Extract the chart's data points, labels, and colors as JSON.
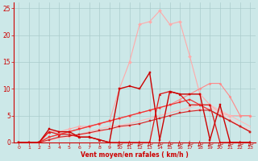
{
  "title": "",
  "xlabel": "Vent moyen/en rafales ( km/h )",
  "bg_color": "#cce8e8",
  "grid_color": "#aacccc",
  "xlim": [
    -0.5,
    23.5
  ],
  "ylim": [
    0,
    26
  ],
  "yticks": [
    0,
    5,
    10,
    15,
    20,
    25
  ],
  "xticks": [
    0,
    1,
    2,
    3,
    4,
    5,
    6,
    7,
    8,
    9,
    10,
    11,
    12,
    13,
    14,
    15,
    16,
    17,
    18,
    19,
    20,
    21,
    22,
    23
  ],
  "series": [
    {
      "x": [
        0,
        1,
        2,
        3,
        4,
        5,
        6,
        7,
        8,
        9,
        10,
        11,
        12,
        13,
        14,
        15,
        16,
        17,
        18,
        19,
        20,
        21,
        22,
        23
      ],
      "y": [
        0,
        0,
        0,
        2,
        2,
        2.5,
        3,
        3,
        3.5,
        4,
        10,
        15,
        22,
        22.5,
        24.5,
        22,
        22.5,
        16,
        9,
        7,
        5.5,
        5,
        5,
        5
      ],
      "color": "#ffaaaa",
      "lw": 0.8,
      "marker": "D",
      "ms": 2.0,
      "ls": "-",
      "zorder": 2
    },
    {
      "x": [
        0,
        1,
        2,
        3,
        4,
        5,
        6,
        7,
        8,
        9,
        10,
        11,
        12,
        13,
        14,
        15,
        16,
        17,
        18,
        19,
        20,
        21,
        22,
        23
      ],
      "y": [
        0,
        0,
        0,
        1,
        1.5,
        2,
        2.5,
        3,
        3.5,
        4,
        4.5,
        5,
        5.5,
        6,
        6.5,
        7,
        8,
        9,
        10,
        11,
        11,
        8.5,
        5,
        5
      ],
      "color": "#ff8888",
      "lw": 0.8,
      "marker": "D",
      "ms": 1.5,
      "ls": "-",
      "zorder": 2
    },
    {
      "x": [
        0,
        1,
        2,
        3,
        4,
        5,
        6,
        7,
        8,
        9,
        10,
        11,
        12,
        13,
        14,
        15,
        16,
        17,
        18,
        19,
        20,
        21,
        22,
        23
      ],
      "y": [
        0,
        0,
        0,
        0.5,
        1,
        1.2,
        1.5,
        2,
        2.5,
        3,
        3.2,
        3.5,
        4,
        4.5,
        5,
        5.5,
        6,
        6.5,
        7,
        7,
        6,
        5,
        4,
        3
      ],
      "color": "#ffbbbb",
      "lw": 0.8,
      "marker": null,
      "ms": 0,
      "ls": "-",
      "zorder": 2
    },
    {
      "x": [
        0,
        1,
        2,
        3,
        4,
        5,
        6,
        7,
        8,
        9,
        10,
        11,
        12,
        13,
        14,
        15,
        16,
        17,
        18,
        19,
        20,
        21,
        22,
        23
      ],
      "y": [
        0,
        0,
        0,
        0.3,
        0.8,
        1,
        1.3,
        1.7,
        2,
        2.5,
        2.8,
        3,
        3.5,
        4,
        4.5,
        5,
        5.5,
        6,
        6.2,
        6.5,
        5.5,
        4.5,
        3,
        2.5
      ],
      "color": "#ffcccc",
      "lw": 0.8,
      "marker": null,
      "ms": 0,
      "ls": "-",
      "zorder": 2
    },
    {
      "x": [
        0,
        1,
        2,
        3,
        4,
        5,
        6,
        7,
        8,
        9,
        10,
        11,
        12,
        13,
        14,
        15,
        16,
        17,
        18,
        19,
        20,
        21,
        22,
        23
      ],
      "y": [
        0,
        0,
        0,
        2.5,
        2,
        2,
        1,
        1,
        0.5,
        0,
        10,
        10.5,
        10,
        13,
        0.5,
        9.5,
        9,
        9,
        9,
        0.5,
        7,
        0,
        0,
        0
      ],
      "color": "#cc0000",
      "lw": 1.0,
      "marker": "s",
      "ms": 2.0,
      "ls": "-",
      "zorder": 4
    },
    {
      "x": [
        0,
        1,
        2,
        3,
        4,
        5,
        6,
        7,
        8,
        9,
        10,
        11,
        12,
        13,
        14,
        15,
        16,
        17,
        18,
        19,
        20,
        21,
        22,
        23
      ],
      "y": [
        0,
        0,
        0,
        2,
        1.5,
        1.5,
        1,
        1,
        0.5,
        0,
        0,
        0,
        0,
        0,
        9,
        9.5,
        9,
        7,
        7,
        7,
        0,
        0,
        0,
        0
      ],
      "color": "#dd1111",
      "lw": 0.9,
      "marker": "^",
      "ms": 2.0,
      "ls": "-",
      "zorder": 3
    },
    {
      "x": [
        0,
        1,
        2,
        3,
        4,
        5,
        6,
        7,
        8,
        9,
        10,
        11,
        12,
        13,
        14,
        15,
        16,
        17,
        18,
        19,
        20,
        21,
        22,
        23
      ],
      "y": [
        0,
        0,
        0,
        1,
        1.5,
        2,
        2.5,
        3,
        3.5,
        4,
        4.5,
        5,
        5.5,
        6,
        6.5,
        7,
        7.5,
        8,
        7,
        6,
        5,
        4,
        3,
        2
      ],
      "color": "#ee3333",
      "lw": 0.9,
      "marker": "s",
      "ms": 1.5,
      "ls": "-",
      "zorder": 3
    },
    {
      "x": [
        0,
        1,
        2,
        3,
        4,
        5,
        6,
        7,
        8,
        9,
        10,
        11,
        12,
        13,
        14,
        15,
        16,
        17,
        18,
        19,
        20,
        21,
        22,
        23
      ],
      "y": [
        0,
        0,
        0,
        0.5,
        1,
        1.2,
        1.5,
        1.8,
        2.2,
        2.5,
        3,
        3.2,
        3.5,
        4,
        4.5,
        5,
        5.5,
        5.8,
        6,
        6,
        5,
        4,
        3,
        2
      ],
      "color": "#cc2222",
      "lw": 0.8,
      "marker": "s",
      "ms": 1.5,
      "ls": "-",
      "zorder": 3
    }
  ],
  "wind_arrows": {
    "x": [
      10,
      11,
      12,
      13,
      14,
      15,
      16,
      17,
      18,
      19,
      20,
      21,
      22,
      23
    ],
    "color": "#cc0000"
  }
}
